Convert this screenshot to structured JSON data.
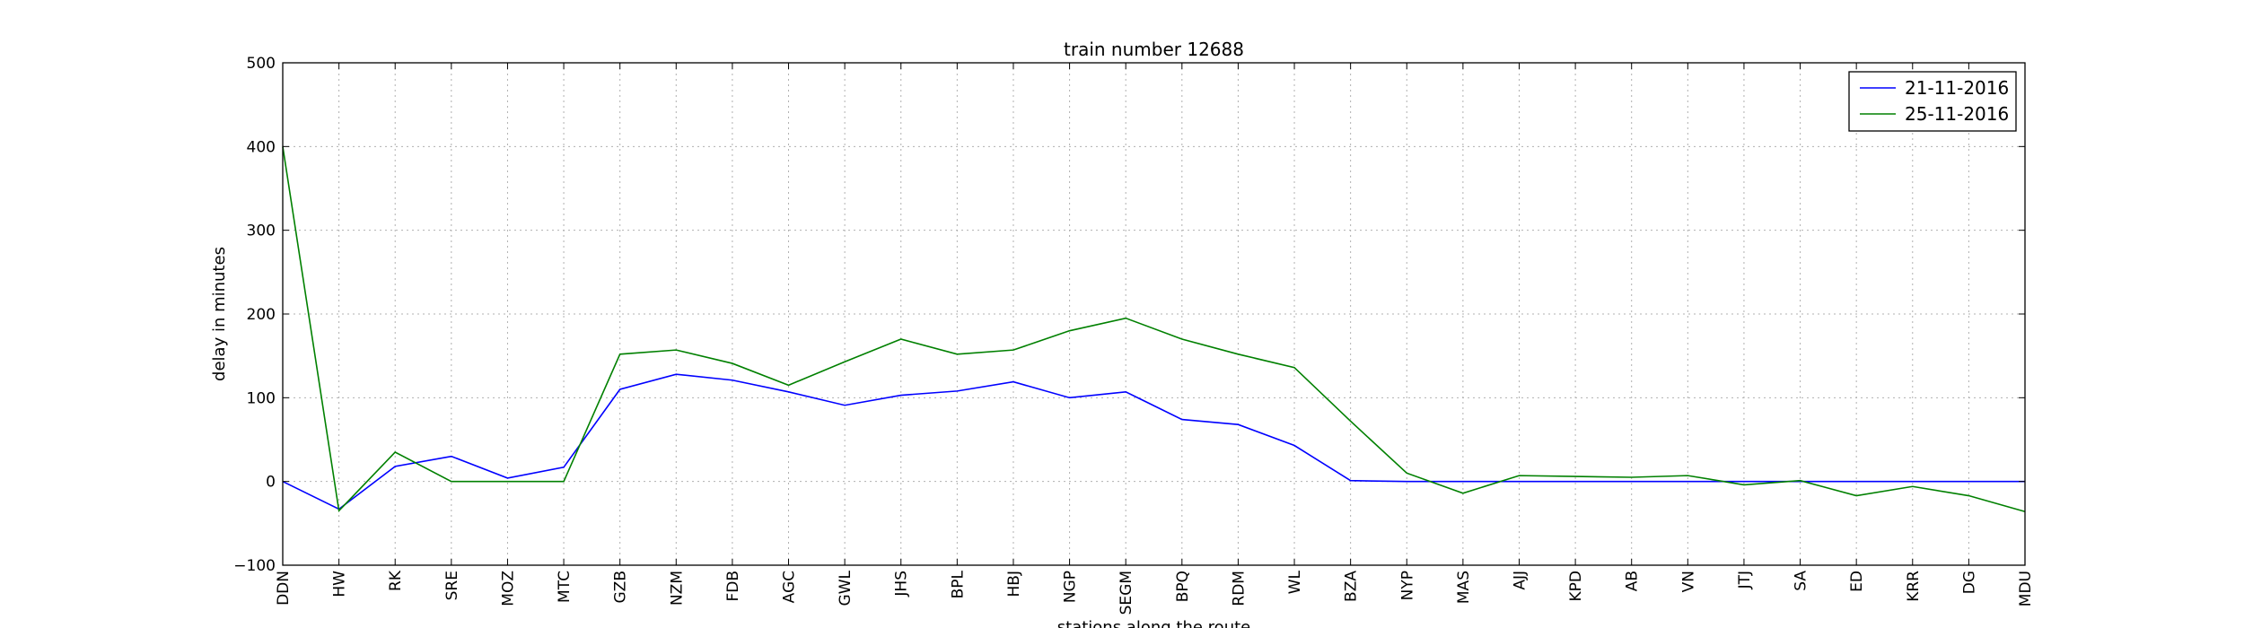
{
  "chart_data": {
    "type": "line",
    "title": "train number 12688",
    "xlabel": "stations along the route",
    "ylabel": "delay in minutes",
    "ylim": [
      -100,
      500
    ],
    "yticks": [
      -100,
      0,
      100,
      200,
      300,
      400,
      500
    ],
    "ytick_labels": [
      "−100",
      "0",
      "100",
      "200",
      "300",
      "400",
      "500"
    ],
    "grid": true,
    "legend_position": "top-right",
    "categories": [
      "DDN",
      "HW",
      "RK",
      "SRE",
      "MOZ",
      "MTC",
      "GZB",
      "NZM",
      "FDB",
      "AGC",
      "GWL",
      "JHS",
      "BPL",
      "HBJ",
      "NGP",
      "SEGM",
      "BPQ",
      "RDM",
      "WL",
      "BZA",
      "NYP",
      "MAS",
      "AJJ",
      "KPD",
      "AB",
      "VN",
      "JTJ",
      "SA",
      "ED",
      "KRR",
      "DG",
      "MDU"
    ],
    "series": [
      {
        "name": "21-11-2016",
        "color": "#0000ff",
        "values": [
          0,
          -33,
          18,
          30,
          4,
          17,
          110,
          128,
          121,
          107,
          91,
          103,
          108,
          119,
          100,
          107,
          74,
          68,
          43,
          1,
          0,
          0,
          0,
          0,
          0,
          0,
          0,
          0,
          0,
          0,
          0,
          0
        ]
      },
      {
        "name": "25-11-2016",
        "color": "#008000",
        "values": [
          400,
          -35,
          35,
          0,
          0,
          0,
          152,
          157,
          141,
          115,
          143,
          170,
          152,
          157,
          180,
          195,
          170,
          152,
          136,
          72,
          10,
          -14,
          7,
          6,
          5,
          7,
          -4,
          1,
          -17,
          -6,
          -17,
          -36
        ]
      }
    ]
  }
}
